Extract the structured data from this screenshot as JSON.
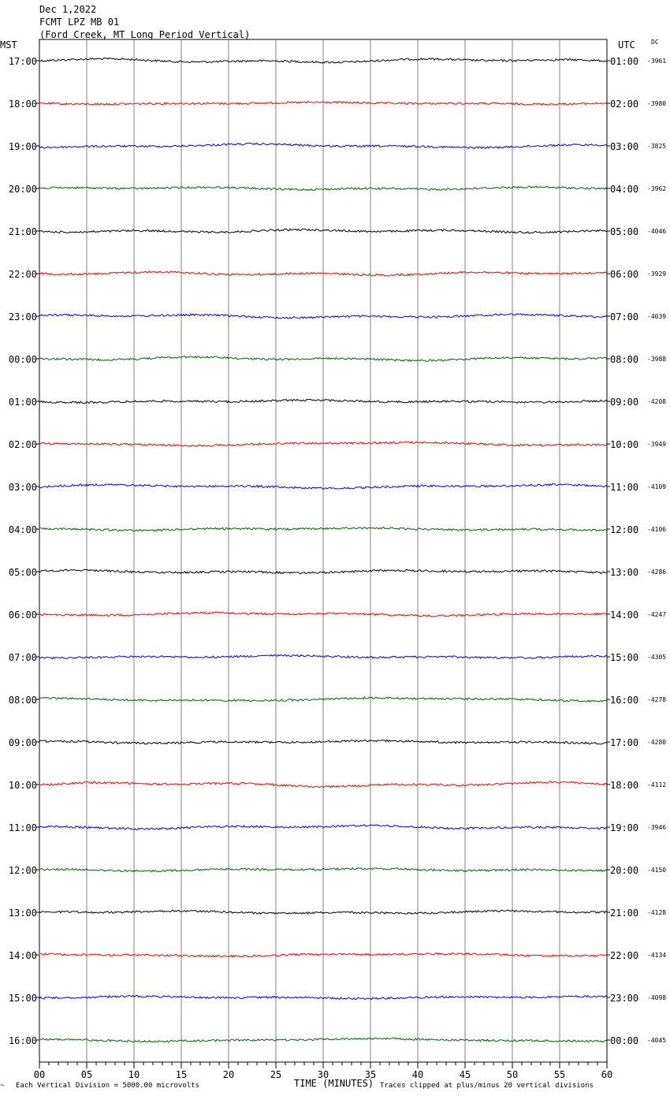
{
  "header": {
    "date": "Dec 1,2022",
    "station": "FCMT LPZ MB 01",
    "location": "(Ford Creek, MT Long Period Vertical)"
  },
  "left_axis_label": "MST",
  "right_axis_label": "UTC",
  "dc_label": "DC",
  "footer": {
    "mark": "~",
    "vertical_division": "Each Vertical Division = 5000.00 microvolts",
    "clip_note": "Traces clipped at plus/minus 20 vertical divisions"
  },
  "colors": [
    "#000000",
    "#ff0000",
    "#0000ff",
    "#006400"
  ],
  "chart_data": {
    "type": "line",
    "title": "FCMT LPZ MB 01",
    "xlabel": "TIME (MINUTES)",
    "xlim": [
      0,
      60
    ],
    "x_ticks": [
      "00",
      "05",
      "10",
      "15",
      "20",
      "25",
      "30",
      "35",
      "40",
      "45",
      "50",
      "55",
      "60"
    ],
    "rows": [
      {
        "mst": "17:00",
        "utc": "01:00",
        "dc": "-3961",
        "color": "#000000"
      },
      {
        "mst": "18:00",
        "utc": "02:00",
        "dc": "-3980",
        "color": "#ff0000"
      },
      {
        "mst": "19:00",
        "utc": "03:00",
        "dc": "-3825",
        "color": "#0000ff"
      },
      {
        "mst": "20:00",
        "utc": "04:00",
        "dc": "-3962",
        "color": "#006400"
      },
      {
        "mst": "21:00",
        "utc": "05:00",
        "dc": "-4046",
        "color": "#000000"
      },
      {
        "mst": "22:00",
        "utc": "06:00",
        "dc": "-3929",
        "color": "#ff0000"
      },
      {
        "mst": "23:00",
        "utc": "07:00",
        "dc": "-4039",
        "color": "#0000ff"
      },
      {
        "mst": "00:00",
        "utc": "08:00",
        "dc": "-3988",
        "color": "#006400"
      },
      {
        "mst": "01:00",
        "utc": "09:00",
        "dc": "-4208",
        "color": "#000000"
      },
      {
        "mst": "02:00",
        "utc": "10:00",
        "dc": "-3949",
        "color": "#ff0000"
      },
      {
        "mst": "03:00",
        "utc": "11:00",
        "dc": "-4109",
        "color": "#0000ff"
      },
      {
        "mst": "04:00",
        "utc": "12:00",
        "dc": "-4106",
        "color": "#006400"
      },
      {
        "mst": "05:00",
        "utc": "13:00",
        "dc": "-4286",
        "color": "#000000"
      },
      {
        "mst": "06:00",
        "utc": "14:00",
        "dc": "-4247",
        "color": "#ff0000"
      },
      {
        "mst": "07:00",
        "utc": "15:00",
        "dc": "-4305",
        "color": "#0000ff"
      },
      {
        "mst": "08:00",
        "utc": "16:00",
        "dc": "-4278",
        "color": "#006400"
      },
      {
        "mst": "09:00",
        "utc": "17:00",
        "dc": "-4280",
        "color": "#000000"
      },
      {
        "mst": "10:00",
        "utc": "18:00",
        "dc": "-4112",
        "color": "#ff0000"
      },
      {
        "mst": "11:00",
        "utc": "19:00",
        "dc": "-3946",
        "color": "#0000ff"
      },
      {
        "mst": "12:00",
        "utc": "20:00",
        "dc": "-4150",
        "color": "#006400"
      },
      {
        "mst": "13:00",
        "utc": "21:00",
        "dc": "-4128",
        "color": "#000000"
      },
      {
        "mst": "14:00",
        "utc": "22:00",
        "dc": "-4134",
        "color": "#ff0000"
      },
      {
        "mst": "15:00",
        "utc": "23:00",
        "dc": "-4098",
        "color": "#0000ff"
      },
      {
        "mst": "16:00",
        "utc": "00:00",
        "dc": "-4045",
        "color": "#006400"
      }
    ],
    "grid": true
  }
}
